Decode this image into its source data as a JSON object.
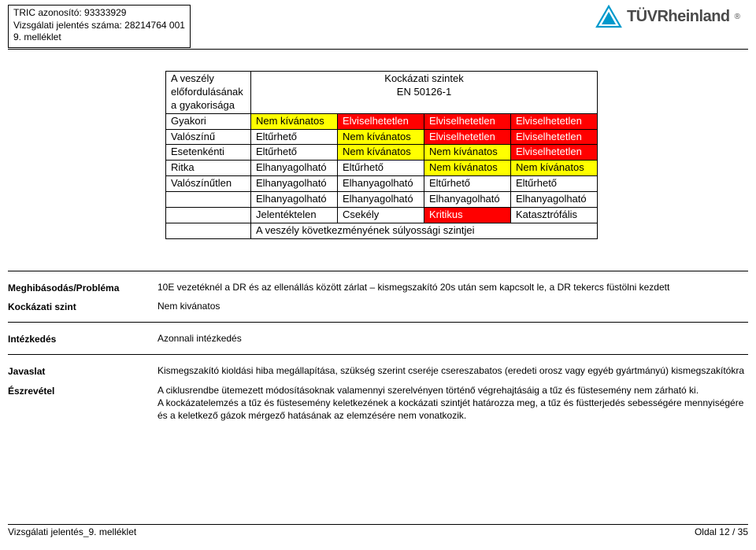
{
  "header": {
    "line1": "TRIC azonosító: 93333929",
    "line2": "Vizsgálati jelentés száma: 28214764  001",
    "line3": "9. melléklet"
  },
  "logo": {
    "brand": "TÜVRheinland",
    "reg": "®",
    "triangle_color": "#0099cc"
  },
  "riskTable": {
    "rowHeader": {
      "l1": "A veszély",
      "l2": "előfordulásának",
      "l3": "a gyakorisága"
    },
    "mergedHeader": {
      "l1": "Kockázati szintek",
      "l2": "EN 50126-1"
    },
    "rows": [
      {
        "freq": "Gyakori",
        "c1": {
          "t": "Nem kívánatos",
          "cls": "cell-yellow"
        },
        "c2": {
          "t": "Elviselhetetlen",
          "cls": "cell-red"
        },
        "c3": {
          "t": "Elviselhetetlen",
          "cls": "cell-red"
        },
        "c4": {
          "t": "Elviselhetetlen",
          "cls": "cell-red"
        }
      },
      {
        "freq": "Valószínű",
        "c1": {
          "t": "Eltűrhető",
          "cls": ""
        },
        "c2": {
          "t": "Nem kívánatos",
          "cls": "cell-yellow"
        },
        "c3": {
          "t": "Elviselhetetlen",
          "cls": "cell-red"
        },
        "c4": {
          "t": "Elviselhetetlen",
          "cls": "cell-red"
        }
      },
      {
        "freq": "Esetenkénti",
        "c1": {
          "t": "Eltűrhető",
          "cls": ""
        },
        "c2": {
          "t": "Nem kívánatos",
          "cls": "cell-yellow"
        },
        "c3": {
          "t": "Nem kívánatos",
          "cls": "cell-yellow"
        },
        "c4": {
          "t": "Elviselhetetlen",
          "cls": "cell-red"
        }
      },
      {
        "freq": "Ritka",
        "c1": {
          "t": "Elhanyagolható",
          "cls": ""
        },
        "c2": {
          "t": "Eltűrhető",
          "cls": ""
        },
        "c3": {
          "t": "Nem kívánatos",
          "cls": "cell-yellow"
        },
        "c4": {
          "t": "Nem kívánatos",
          "cls": "cell-yellow"
        }
      },
      {
        "freq": "Valószínűtlen",
        "c1": {
          "t": "Elhanyagolható",
          "cls": ""
        },
        "c2": {
          "t": "Elhanyagolható",
          "cls": ""
        },
        "c3": {
          "t": "Eltűrhető",
          "cls": ""
        },
        "c4": {
          "t": "Eltűrhető",
          "cls": ""
        }
      },
      {
        "freq": "",
        "c1": {
          "t": "Elhanyagolható",
          "cls": ""
        },
        "c2": {
          "t": "Elhanyagolható",
          "cls": ""
        },
        "c3": {
          "t": "Elhanyagolható",
          "cls": ""
        },
        "c4": {
          "t": "Elhanyagolható",
          "cls": ""
        }
      }
    ],
    "severityRow": {
      "freq": "",
      "c1": {
        "t": "Jelentéktelen",
        "cls": ""
      },
      "c2": {
        "t": "Csekély",
        "cls": ""
      },
      "c3": {
        "t": "Kritikus",
        "cls": "cell-red"
      },
      "c4": {
        "t": "Katasztrófális",
        "cls": ""
      }
    },
    "caption": "A veszély következményének súlyossági szintjei"
  },
  "kv": {
    "k1": "Meghibásodás/Probléma",
    "v1": "10E vezetéknél a DR és az ellenállás között zárlat – kismegszakító 20s után sem kapcsolt le, a DR tekercs füstölni kezdett",
    "k2": "Kockázati szint",
    "v2": "Nem kivánatos",
    "k3": "Intézkedés",
    "v3": "Azonnali intézkedés",
    "k4": "Javaslat",
    "v4": "Kismegszakító kioldási hiba megállapítása, szükség szerint cseréje csereszabatos (eredeti orosz vagy egyéb gyártmányú) kismegszakítókra",
    "k5": "Észrevétel",
    "v5": "A ciklusrendbe ütemezett módosításoknak valamennyi szerelvényen történő végrehajtásáig a tűz és füstesemény nem zárható ki.\nA kockázatelemzés a tűz és füstesemény keletkezének a kockázati szintjét határozza meg, a tűz és füstterjedés sebességére mennyiségére és a keletkező gázok mérgező hatásának az elemzésére nem vonatkozik."
  },
  "footer": {
    "left": "Vizsgálati jelentés_9. melléklet",
    "right": "Oldal 12 / 35"
  },
  "colors": {
    "red": "#ff0000",
    "yellow": "#ffff00",
    "text": "#000000",
    "bg": "#ffffff"
  }
}
